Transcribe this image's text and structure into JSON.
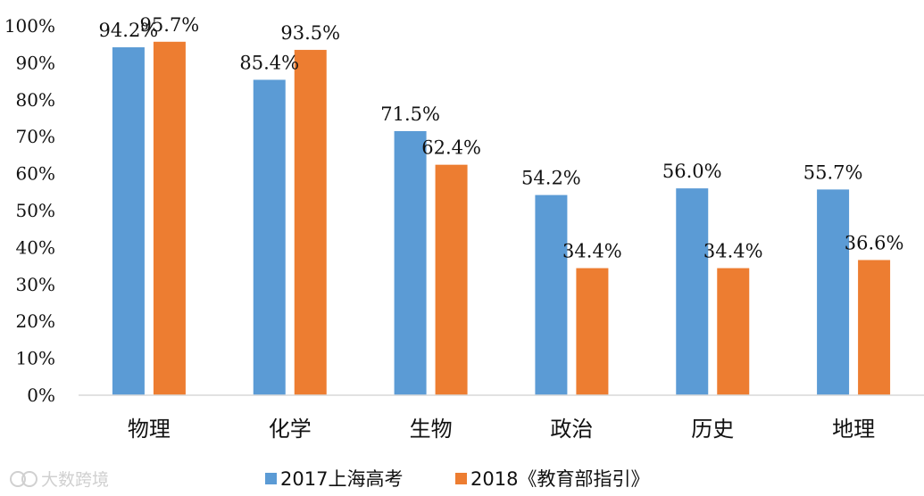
{
  "chart_data": {
    "type": "bar",
    "categories": [
      "物理",
      "化学",
      "生物",
      "政治",
      "历史",
      "地理"
    ],
    "series": [
      {
        "name": "2017上海高考",
        "values": [
          94.2,
          85.4,
          71.5,
          54.2,
          56.0,
          55.7
        ],
        "labels": [
          "94.2%",
          "85.4%",
          "71.5%",
          "54.2%",
          "56.0%",
          "55.7%"
        ],
        "color": "#5b9bd5"
      },
      {
        "name": "2018《教育部指引》",
        "values": [
          95.7,
          93.5,
          62.4,
          34.4,
          34.4,
          36.6
        ],
        "labels": [
          "95.7%",
          "93.5%",
          "62.4%",
          "34.4%",
          "34.4%",
          "36.6%"
        ],
        "color": "#ed7d31"
      }
    ],
    "ylim": [
      0,
      100
    ],
    "yticks": [
      0,
      10,
      20,
      30,
      40,
      50,
      60,
      70,
      80,
      90,
      100
    ],
    "ytick_labels": [
      "0%",
      "10%",
      "20%",
      "30%",
      "40%",
      "50%",
      "60%",
      "70%",
      "80%",
      "90%",
      "100%"
    ],
    "grid": false,
    "legend_position": "bottom"
  },
  "watermark": {
    "text": "大数跨境"
  }
}
